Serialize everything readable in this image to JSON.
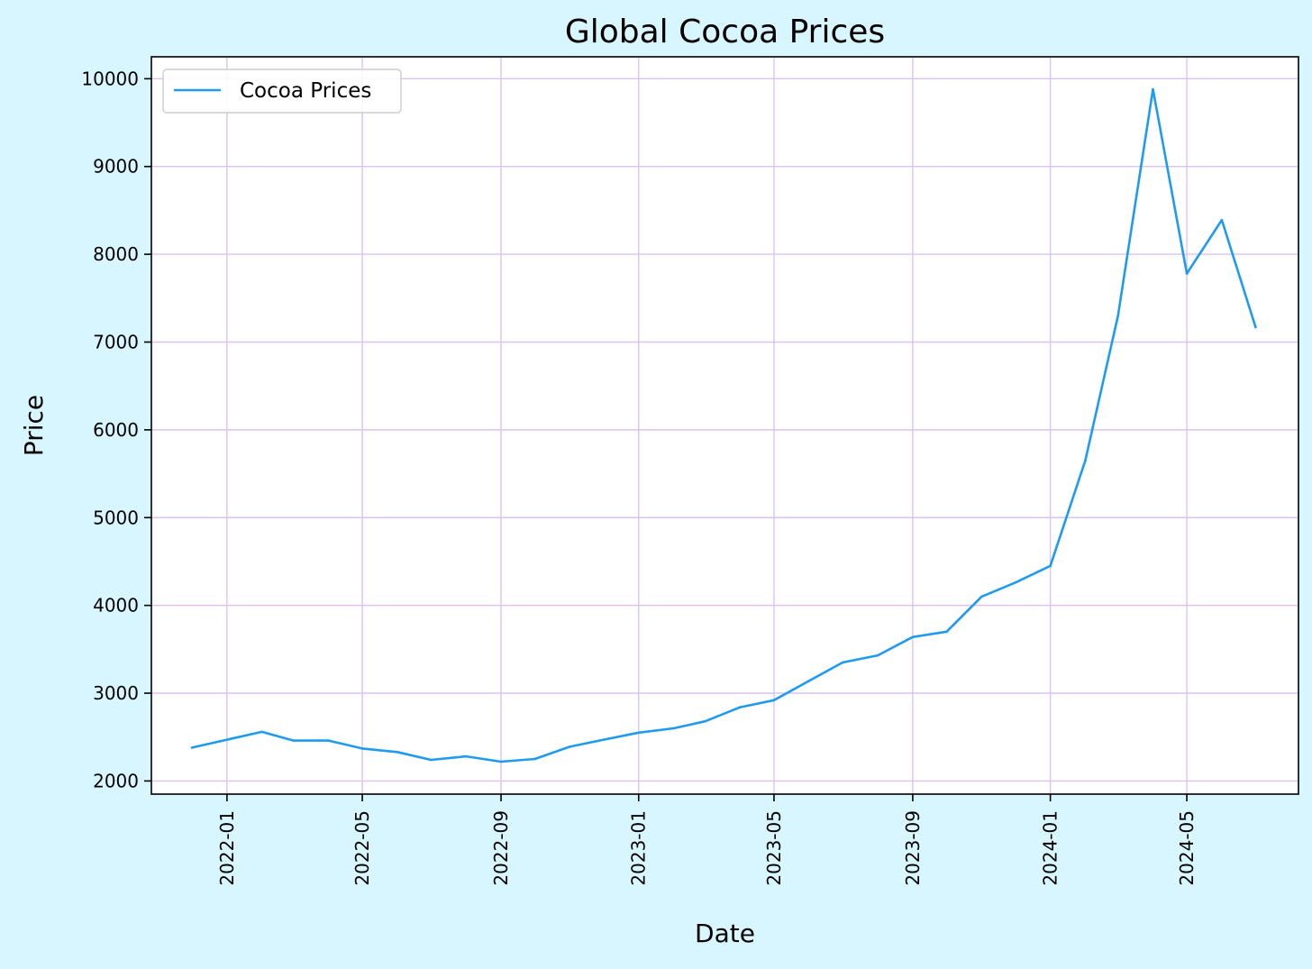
{
  "chart_data": {
    "type": "line",
    "title": "Global Cocoa Prices",
    "xlabel": "Date",
    "ylabel": "Price",
    "x_tick_labels": [
      "2022-01",
      "2022-05",
      "2022-09",
      "2023-01",
      "2023-05",
      "2023-09",
      "2024-01",
      "2024-05"
    ],
    "y_ticks": [
      2000,
      3000,
      4000,
      5000,
      6000,
      7000,
      8000,
      9000,
      10000
    ],
    "ylim": [
      1850,
      10250
    ],
    "xlim": [
      "2021-10-26",
      "2024-08-08"
    ],
    "grid": true,
    "legend_position": "top-left",
    "series": [
      {
        "name": "Cocoa Prices",
        "color": "#1e9bf0",
        "points": [
          {
            "x": "2021-12-01",
            "y": 2380
          },
          {
            "x": "2022-01-01",
            "y": 2470
          },
          {
            "x": "2022-02-01",
            "y": 2560
          },
          {
            "x": "2022-03-01",
            "y": 2460
          },
          {
            "x": "2022-04-01",
            "y": 2460
          },
          {
            "x": "2022-05-01",
            "y": 2370
          },
          {
            "x": "2022-06-01",
            "y": 2330
          },
          {
            "x": "2022-07-01",
            "y": 2240
          },
          {
            "x": "2022-08-01",
            "y": 2280
          },
          {
            "x": "2022-09-01",
            "y": 2220
          },
          {
            "x": "2022-10-01",
            "y": 2250
          },
          {
            "x": "2022-11-01",
            "y": 2390
          },
          {
            "x": "2022-12-01",
            "y": 2470
          },
          {
            "x": "2023-01-01",
            "y": 2550
          },
          {
            "x": "2023-02-01",
            "y": 2600
          },
          {
            "x": "2023-03-01",
            "y": 2680
          },
          {
            "x": "2023-04-01",
            "y": 2840
          },
          {
            "x": "2023-05-01",
            "y": 2920
          },
          {
            "x": "2023-06-01",
            "y": 3140
          },
          {
            "x": "2023-07-01",
            "y": 3350
          },
          {
            "x": "2023-08-01",
            "y": 3430
          },
          {
            "x": "2023-09-01",
            "y": 3640
          },
          {
            "x": "2023-10-01",
            "y": 3700
          },
          {
            "x": "2023-11-01",
            "y": 4100
          },
          {
            "x": "2023-12-01",
            "y": 4260
          },
          {
            "x": "2024-01-01",
            "y": 4450
          },
          {
            "x": "2024-02-01",
            "y": 5650
          },
          {
            "x": "2024-03-01",
            "y": 7300
          },
          {
            "x": "2024-04-01",
            "y": 9880
          },
          {
            "x": "2024-05-01",
            "y": 7780
          },
          {
            "x": "2024-06-01",
            "y": 8390
          },
          {
            "x": "2024-07-01",
            "y": 7170
          }
        ]
      }
    ]
  },
  "colors": {
    "figure_background": "#d7f6ff",
    "plot_background": "#ffffff",
    "grid": "#dcc2f2",
    "line": "#1e9bf0"
  }
}
